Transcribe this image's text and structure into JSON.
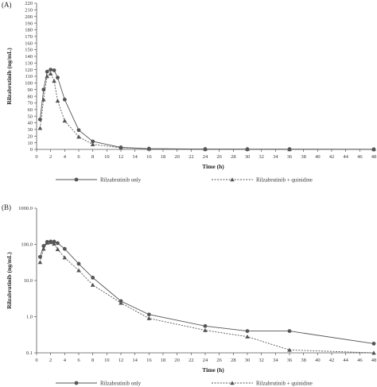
{
  "panel_a": {
    "label": "(A)"
  },
  "panel_b": {
    "label": "(B)"
  },
  "chart_data": [
    {
      "type": "line",
      "panel": "(A)",
      "xlabel": "Time (h)",
      "ylabel": "Rilzabrutinib (ng/mL)",
      "xlim": [
        0,
        48
      ],
      "ylim": [
        0,
        220
      ],
      "x_ticks": [
        0,
        2,
        4,
        6,
        8,
        10,
        12,
        14,
        16,
        18,
        20,
        22,
        24,
        26,
        28,
        30,
        32,
        34,
        36,
        38,
        40,
        42,
        44,
        46,
        48
      ],
      "y_ticks": [
        0,
        10,
        20,
        30,
        40,
        50,
        60,
        70,
        80,
        90,
        100,
        110,
        120,
        130,
        140,
        150,
        160,
        170,
        180,
        190,
        200,
        210,
        220
      ],
      "x_tick_labels": [
        "0",
        "2",
        "4",
        "6",
        "8",
        "10",
        "12",
        "14",
        "16",
        "18",
        "20",
        "22",
        "24",
        "26",
        "28",
        "30",
        "32",
        "34",
        "36",
        "38",
        "40",
        "42",
        "44",
        "46",
        "48"
      ],
      "y_tick_labels": [
        "0",
        "10",
        "20",
        "30",
        "40",
        "50",
        "60",
        "70",
        "80",
        "90",
        "100",
        "110",
        "120",
        "130",
        "140",
        "150",
        "160",
        "170",
        "180",
        "190",
        "200",
        "210",
        "220"
      ],
      "y_scale": "linear",
      "legend_position": "bottom",
      "series": [
        {
          "name": "Rilzabrutinib only",
          "color": "#555555",
          "line_style": "solid",
          "marker": "circle",
          "x": [
            0.5,
            1,
            1.5,
            2,
            2.5,
            3,
            4,
            6,
            8,
            12,
            16,
            24,
            30,
            36,
            48
          ],
          "y": [
            45,
            90,
            117,
            120,
            119,
            108,
            75,
            29,
            12,
            3,
            1.1,
            0.55,
            0.4,
            0.4,
            0.18
          ]
        },
        {
          "name": "Rilzabrutinib + quinidine",
          "color": "#555555",
          "line_style": "dashed",
          "marker": "triangle",
          "x": [
            0.5,
            1,
            1.5,
            2,
            2.5,
            3,
            4,
            6,
            8,
            12,
            16,
            24,
            30,
            36,
            48
          ],
          "y": [
            32,
            75,
            110,
            114,
            103,
            73,
            43,
            19,
            7.5,
            2.5,
            0.9,
            0.42,
            0.28,
            0.12,
            0.1
          ]
        }
      ]
    },
    {
      "type": "line",
      "panel": "(B)",
      "xlabel": "Time (h)",
      "ylabel": "Rilzabrutinib (ng/mL)",
      "xlim": [
        0,
        48
      ],
      "ylim": [
        0.1,
        1000
      ],
      "x_ticks": [
        0,
        2,
        4,
        6,
        8,
        10,
        12,
        14,
        16,
        18,
        20,
        22,
        24,
        26,
        28,
        30,
        32,
        34,
        36,
        38,
        40,
        42,
        44,
        46,
        48
      ],
      "y_ticks": [
        0.1,
        1,
        10,
        100,
        1000
      ],
      "x_tick_labels": [
        "0",
        "2",
        "4",
        "6",
        "8",
        "10",
        "12",
        "14",
        "16",
        "18",
        "20",
        "22",
        "24",
        "26",
        "28",
        "30",
        "32",
        "34",
        "36",
        "38",
        "40",
        "42",
        "44",
        "46",
        "48"
      ],
      "y_tick_labels": [
        "0.1",
        "1.0",
        "10.0",
        "100.0",
        "1000.0"
      ],
      "y_scale": "log",
      "legend_position": "bottom",
      "series": [
        {
          "name": "Rilzabrutinib only",
          "color": "#555555",
          "line_style": "solid",
          "marker": "circle",
          "x": [
            0.5,
            1,
            1.5,
            2,
            2.5,
            3,
            4,
            6,
            8,
            12,
            16,
            24,
            30,
            36,
            48
          ],
          "y": [
            45,
            90,
            117,
            120,
            119,
            108,
            75,
            29,
            12,
            2.7,
            1.15,
            0.55,
            0.4,
            0.4,
            0.18
          ]
        },
        {
          "name": "Rilzabrutinib + quinidine",
          "color": "#555555",
          "line_style": "dashed",
          "marker": "triangle",
          "x": [
            0.5,
            1,
            1.5,
            2,
            2.5,
            3,
            4,
            6,
            8,
            12,
            16,
            24,
            30,
            36,
            48
          ],
          "y": [
            32,
            75,
            110,
            114,
            103,
            73,
            43,
            19,
            7.5,
            2.4,
            0.9,
            0.42,
            0.28,
            0.12,
            0.1
          ]
        }
      ]
    }
  ]
}
